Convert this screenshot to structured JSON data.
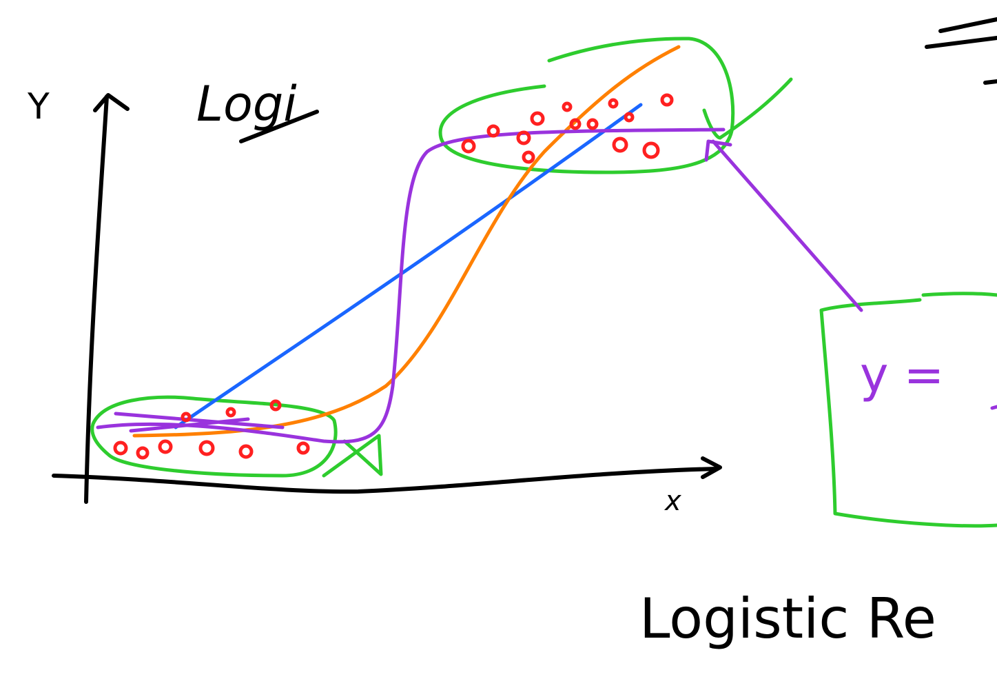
{
  "labels": {
    "y_axis": "Y",
    "title": "Logi",
    "x_axis": "x",
    "equation": "y =",
    "caption": "Logistic Re"
  }
}
